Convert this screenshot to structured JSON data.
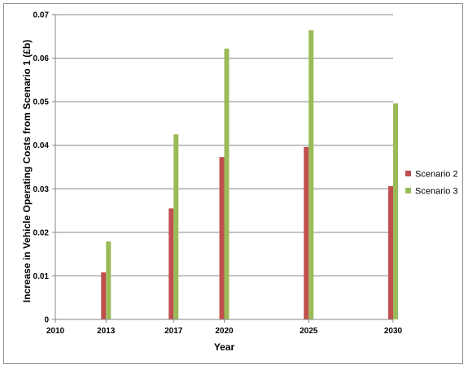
{
  "chart_data": {
    "type": "bar",
    "xlabel": "Year",
    "ylabel": "Increase in Vehicle Operating Costs from Scenario 1 (£b)",
    "ylim": [
      0,
      0.07
    ],
    "yticks": [
      "0",
      "0.01",
      "0.02",
      "0.03",
      "0.04",
      "0.05",
      "0.06",
      "0.07"
    ],
    "ytick_values": [
      0,
      0.01,
      0.02,
      0.03,
      0.04,
      0.05,
      0.06,
      0.07
    ],
    "x_axis_type": "linear years",
    "xlim": [
      2010,
      2030
    ],
    "categories": [
      "2010",
      "2013",
      "2017",
      "2020",
      "2025",
      "2030"
    ],
    "x": [
      2010,
      2013,
      2017,
      2020,
      2025,
      2030
    ],
    "series": [
      {
        "name": "Scenario 2",
        "color": "#c0504d",
        "values": [
          0,
          0.0108,
          0.0255,
          0.0373,
          0.0396,
          0.0306
        ]
      },
      {
        "name": "Scenario 3",
        "color": "#9bbb59",
        "values": [
          0,
          0.0179,
          0.0425,
          0.0622,
          0.0664,
          0.0496
        ]
      }
    ],
    "grid": "horizontal major gridlines",
    "legend": "right"
  }
}
